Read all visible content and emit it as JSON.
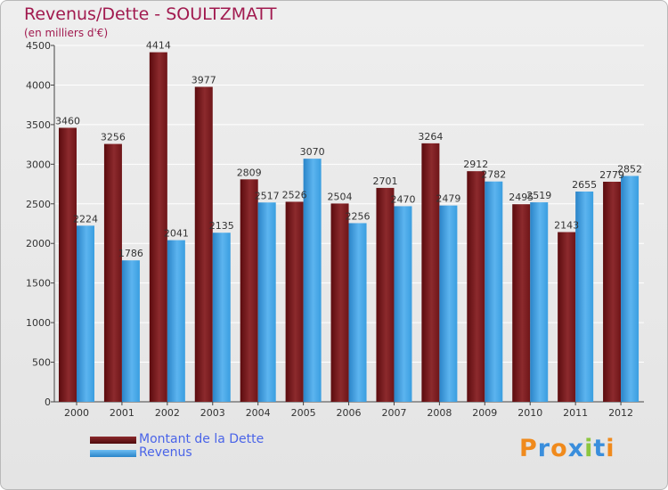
{
  "title": "Revenus/Dette - SOULTZMATT",
  "subtitle": "(en milliers d'€)",
  "legend": [
    {
      "label": "Montant de la Dette",
      "color": "#7a1e22"
    },
    {
      "label": "Revenus",
      "color": "#3a9ee0"
    }
  ],
  "logo": {
    "text": "Proxiti",
    "letters": [
      {
        "ch": "P",
        "color": "#f08a1c"
      },
      {
        "ch": "r",
        "color": "#3a8edc"
      },
      {
        "ch": "o",
        "color": "#f08a1c"
      },
      {
        "ch": "x",
        "color": "#3a8edc"
      },
      {
        "ch": "i",
        "color": "#8cc63f"
      },
      {
        "ch": "t",
        "color": "#3a8edc"
      },
      {
        "ch": "i",
        "color": "#f08a1c"
      }
    ]
  },
  "chart_data": {
    "type": "bar",
    "title": "Revenus/Dette - SOULTZMATT",
    "ylabel": "(en milliers d'€)",
    "categories": [
      "2000",
      "2001",
      "2002",
      "2003",
      "2004",
      "2005",
      "2006",
      "2007",
      "2008",
      "2009",
      "2010",
      "2011",
      "2012"
    ],
    "series": [
      {
        "name": "Montant de la Dette",
        "color": "#7a1e22",
        "values": [
          3460,
          3256,
          4414,
          3977,
          2809,
          2526,
          2504,
          2701,
          3264,
          2912,
          2495,
          2143,
          2779
        ],
        "labels": [
          "3460",
          "3256",
          "4414",
          "3977",
          "2809",
          "2526",
          "2504",
          "2701",
          "3264",
          "2912",
          "2495",
          "2143",
          "2779"
        ]
      },
      {
        "name": "Revenus",
        "color": "#3a9ee0",
        "values": [
          2224,
          1786,
          2041,
          2135,
          2517,
          3070,
          2256,
          2470,
          2479,
          2782,
          2519,
          2655,
          2852
        ],
        "labels": [
          "2224",
          "1786",
          "2041",
          "2135",
          "2517",
          "3070",
          "2256",
          "2470",
          "2479",
          "2782",
          "2519",
          "2655",
          "2852"
        ]
      }
    ],
    "ylim": [
      0,
      4500
    ],
    "yticks": [
      0,
      500,
      1000,
      1500,
      2000,
      2500,
      3000,
      3500,
      4000,
      4500
    ],
    "grid": true,
    "legend_position": "bottom-left"
  }
}
